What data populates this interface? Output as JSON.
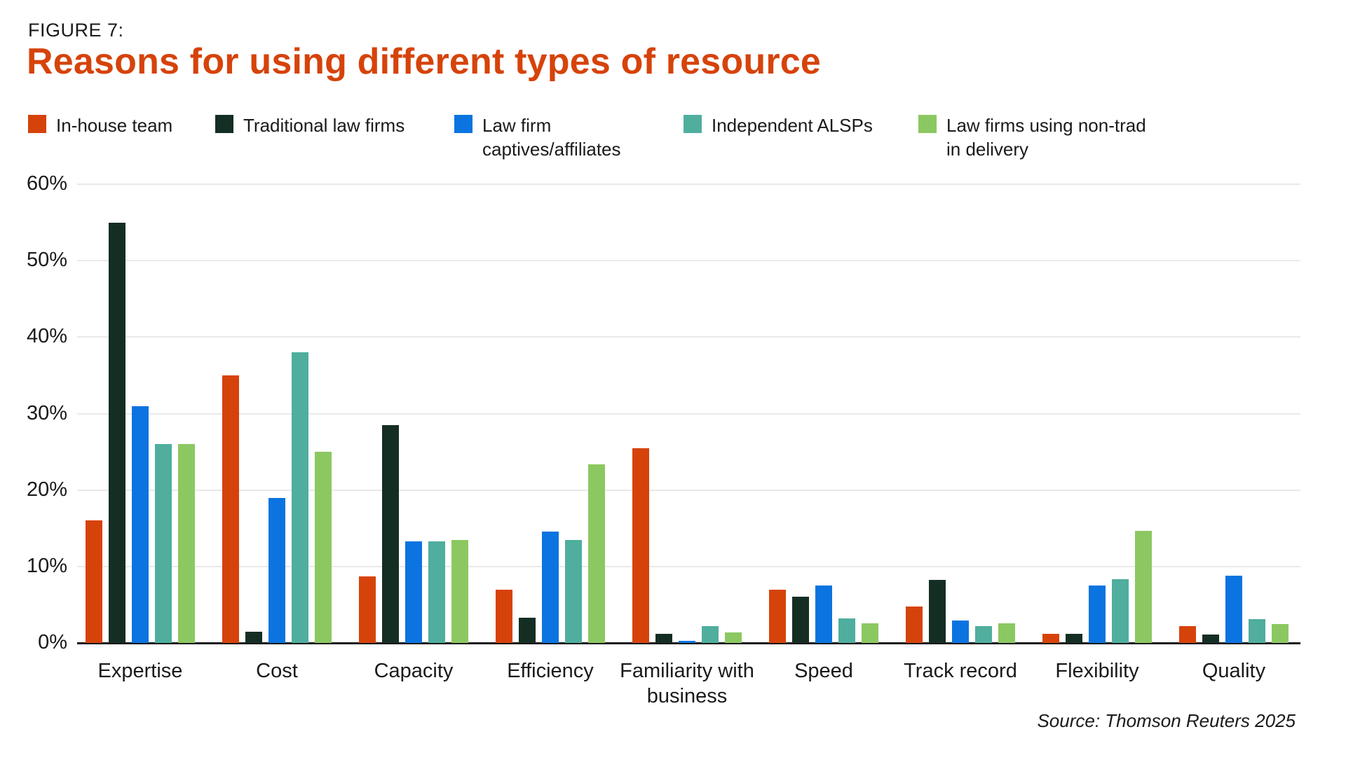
{
  "figure_label": "FIGURE 7:",
  "title": "Reasons for using different types of resource",
  "source_note": "Source: Thomson Reuters 2025",
  "colors": {
    "title_accent": "#D6430A",
    "axis": "#1A1A1A",
    "gridline": "#E9E9E9",
    "text": "#1A1A1A"
  },
  "chart_data": {
    "type": "bar",
    "title": "Reasons for using different types of resource",
    "categories": [
      "Expertise",
      "Cost",
      "Capacity",
      "Efficiency",
      "Familiarity with business",
      "Speed",
      "Track record",
      "Flexibility",
      "Quality"
    ],
    "series": [
      {
        "name": "In-house team",
        "legend_label": "In-house team",
        "color": "#D6430A",
        "values": [
          16,
          35,
          8.7,
          7,
          25.5,
          7,
          4.8,
          1.2,
          2.2
        ]
      },
      {
        "name": "Traditional law firms",
        "legend_label": "Traditional law firms",
        "color": "#152E23",
        "values": [
          55,
          1.5,
          28.5,
          3.3,
          1.2,
          6,
          8.2,
          1.2,
          1.1
        ]
      },
      {
        "name": "Law firm captives/affiliates",
        "legend_label": "Law firm\ncaptives/affiliates",
        "color": "#0B74E0",
        "values": [
          31,
          19,
          13.3,
          14.6,
          0.3,
          7.5,
          2.9,
          7.5,
          8.8
        ]
      },
      {
        "name": "Independent ALSPs",
        "legend_label": "Independent ALSPs",
        "color": "#4FAE9E",
        "values": [
          26,
          38,
          13.3,
          13.5,
          2.2,
          3.2,
          2.2,
          8.3,
          3.1
        ]
      },
      {
        "name": "Law firms using non-trad in delivery",
        "legend_label": "Law firms using non-trad\nin delivery",
        "color": "#8CC861",
        "values": [
          26,
          25,
          13.5,
          23.4,
          1.4,
          2.6,
          2.6,
          14.7,
          2.5
        ]
      }
    ],
    "ylim": [
      0,
      60
    ],
    "ytick_step": 10,
    "ytick_suffix": "%",
    "grid": true,
    "legend_position": "top"
  }
}
